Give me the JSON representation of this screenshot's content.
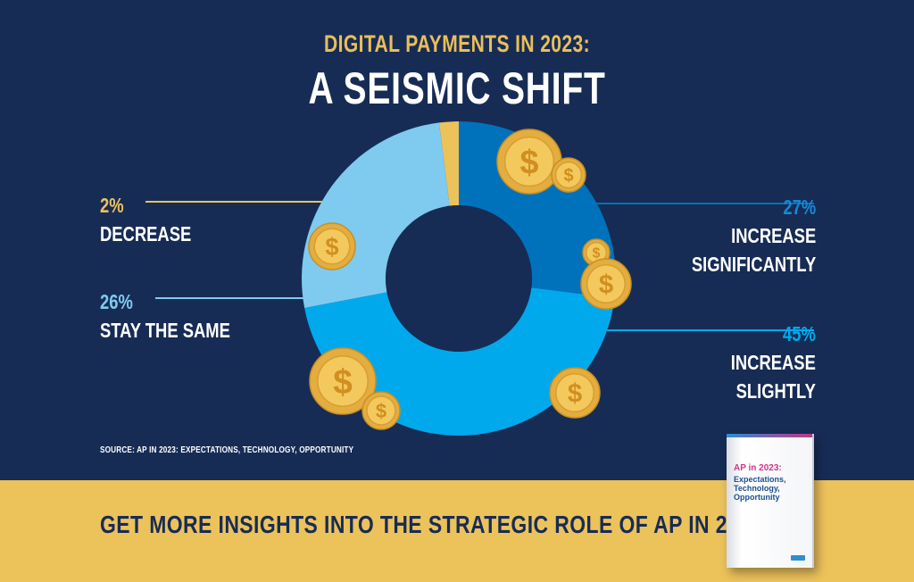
{
  "header": {
    "subtitle": "DIGITAL PAYMENTS IN 2023:",
    "title": "A SEISMIC SHIFT"
  },
  "chart_data": {
    "type": "pie",
    "donut": true,
    "slices": [
      {
        "label": "INCREASE SIGNIFICANTLY",
        "pct_label": "27%",
        "value": 27,
        "color": "#0072bc"
      },
      {
        "label": "INCREASE SLIGHTLY",
        "pct_label": "45%",
        "value": 45,
        "color": "#00a9ec"
      },
      {
        "label": "STAY THE SAME",
        "pct_label": "26%",
        "value": 26,
        "color": "#7ecbef"
      },
      {
        "label": "DECREASE",
        "pct_label": "2%",
        "value": 2,
        "color": "#ecc25b"
      }
    ]
  },
  "labels": {
    "decrease": {
      "pct": "2%",
      "name": "DECREASE"
    },
    "same": {
      "pct": "26%",
      "name": "STAY THE SAME"
    },
    "sig": {
      "pct": "27%",
      "line1": "INCREASE",
      "line2": "SIGNIFICANTLY"
    },
    "slight": {
      "pct": "45%",
      "line1": "INCREASE",
      "line2": "SLIGHTLY"
    }
  },
  "colors": {
    "background": "#172c55",
    "accent": "#ecc25b",
    "coin": "#eab94e"
  },
  "source": "SOURCE:  AP IN 2023: EXPECTATIONS, TECHNOLOGY, OPPORTUNITY",
  "banner": {
    "text": "GET MORE INSIGHTS INTO THE STRATEGIC ROLE OF AP IN 2023"
  },
  "book": {
    "title": "AP in 2023:",
    "subtitle": "Expectations, Technology, Opportunity"
  },
  "icons": {
    "coin": "dollar-coin-icon"
  }
}
